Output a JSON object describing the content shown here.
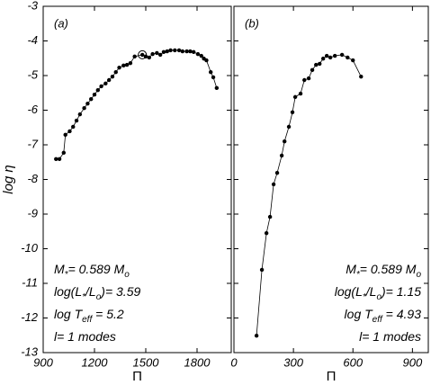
{
  "chart_data": [
    {
      "type": "line",
      "panel_label": "(a)",
      "ylabel": "log η",
      "xlabel": "Π",
      "xlim": [
        900,
        2000
      ],
      "xticks": [
        900,
        1200,
        1500,
        1800
      ],
      "ylim": [
        -13,
        -3
      ],
      "yticks": [
        -3,
        -4,
        -5,
        -6,
        -7,
        -8,
        -9,
        -10,
        -11,
        -12,
        -13
      ],
      "highlight_index": 23,
      "series": [
        {
          "color": "#000000",
          "x": [
            975,
            995,
            1020,
            1030,
            1055,
            1075,
            1095,
            1115,
            1140,
            1160,
            1180,
            1200,
            1220,
            1240,
            1265,
            1285,
            1305,
            1325,
            1345,
            1370,
            1390,
            1410,
            1435,
            1480,
            1500,
            1520,
            1540,
            1565,
            1585,
            1605,
            1625,
            1645,
            1670,
            1695,
            1715,
            1740,
            1760,
            1780,
            1805,
            1825,
            1840,
            1855,
            1880,
            1895,
            1915
          ],
          "values": [
            -7.41,
            -7.41,
            -7.23,
            -6.71,
            -6.61,
            -6.48,
            -6.3,
            -6.12,
            -5.94,
            -5.81,
            -5.68,
            -5.55,
            -5.42,
            -5.31,
            -5.23,
            -5.13,
            -5.03,
            -4.9,
            -4.77,
            -4.71,
            -4.69,
            -4.64,
            -4.45,
            -4.4,
            -4.45,
            -4.48,
            -4.38,
            -4.35,
            -4.4,
            -4.32,
            -4.3,
            -4.27,
            -4.27,
            -4.27,
            -4.3,
            -4.3,
            -4.3,
            -4.32,
            -4.38,
            -4.43,
            -4.51,
            -4.56,
            -4.9,
            -5.05,
            -5.36
          ]
        }
      ],
      "annotations": [
        [
          "M",
          "*",
          "= 0.589 M",
          "o"
        ],
        [
          "log(L",
          "*",
          "/L",
          "o",
          ")= 3.59"
        ],
        [
          "log T",
          "eff",
          " = 5.2"
        ],
        [
          "l= 1 modes"
        ]
      ]
    },
    {
      "type": "line",
      "panel_label": "(b)",
      "xlabel": "Π",
      "xlim": [
        0,
        980
      ],
      "xticks": [
        0,
        300,
        600,
        900
      ],
      "ylim": [
        -13,
        -3
      ],
      "yticks": [
        -3,
        -4,
        -5,
        -6,
        -7,
        -8,
        -9,
        -10,
        -11,
        -12,
        -13
      ],
      "series": [
        {
          "color": "#000000",
          "x": [
            114,
            141,
            164,
            182,
            200,
            218,
            241,
            255,
            277,
            295,
            309,
            336,
            355,
            377,
            395,
            414,
            432,
            450,
            468,
            486,
            509,
            545,
            573,
            600,
            641
          ],
          "values": [
            -12.51,
            -10.61,
            -9.55,
            -9.08,
            -8.14,
            -7.81,
            -7.31,
            -6.9,
            -6.48,
            -6.06,
            -5.62,
            -5.52,
            -5.13,
            -5.08,
            -4.84,
            -4.69,
            -4.66,
            -4.51,
            -4.43,
            -4.48,
            -4.43,
            -4.4,
            -4.48,
            -4.56,
            -5.03
          ]
        }
      ],
      "annotations": [
        [
          "M",
          "*",
          "= 0.589 M",
          "o"
        ],
        [
          "log(L",
          "*",
          "/L",
          "o",
          ")= 1.15"
        ],
        [
          "log T",
          "eff",
          " = 4.93"
        ],
        [
          "l= 1 modes"
        ]
      ]
    }
  ]
}
